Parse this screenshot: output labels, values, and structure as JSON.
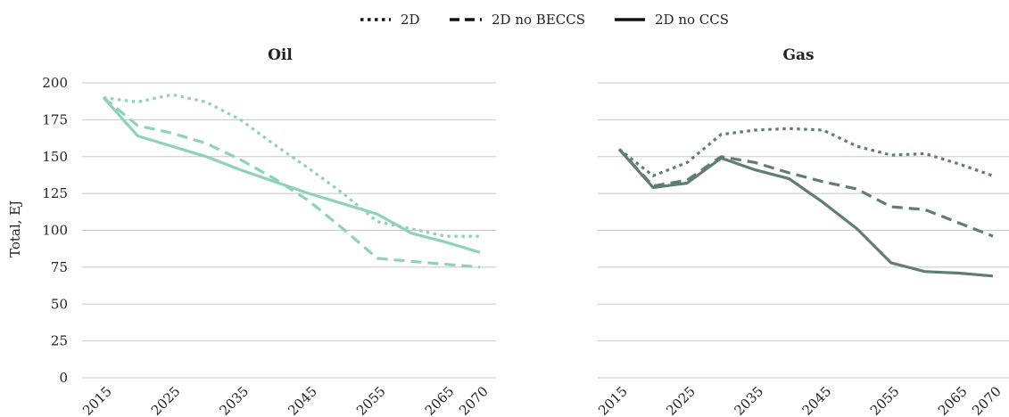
{
  "chart_data": [
    {
      "type": "line",
      "title": "Oil",
      "ylabel": "Total, EJ",
      "xlabel": "",
      "x": [
        2015,
        2020,
        2025,
        2030,
        2035,
        2040,
        2045,
        2050,
        2055,
        2060,
        2065,
        2070
      ],
      "x_tick_labels": [
        "2015",
        "2025",
        "2035",
        "2045",
        "2055",
        "2065",
        "2070"
      ],
      "y_ticks": [
        0,
        25,
        50,
        75,
        100,
        125,
        150,
        175,
        200
      ],
      "ylim": [
        0,
        200
      ],
      "grid": true,
      "color": "#8fd1bd",
      "series": [
        {
          "name": "2D",
          "style": "dotted",
          "values": [
            190,
            187,
            192,
            187,
            175,
            158,
            142,
            125,
            106,
            101,
            96,
            96
          ]
        },
        {
          "name": "2D no BECCS",
          "style": "dashed",
          "values": [
            190,
            171,
            166,
            159,
            148,
            135,
            120,
            101,
            81,
            79,
            77,
            75
          ]
        },
        {
          "name": "2D no CCS",
          "style": "solid",
          "values": [
            190,
            164,
            157,
            150,
            141,
            133,
            125,
            118,
            111,
            98,
            92,
            85
          ]
        }
      ]
    },
    {
      "type": "line",
      "title": "Gas",
      "xlabel": "",
      "x": [
        2015,
        2020,
        2025,
        2030,
        2035,
        2040,
        2045,
        2050,
        2055,
        2060,
        2065,
        2070
      ],
      "x_tick_labels": [
        "2015",
        "2025",
        "2035",
        "2045",
        "2055",
        "2065",
        "2070"
      ],
      "ylim": [
        0,
        200
      ],
      "grid": true,
      "color": "#607c76",
      "series": [
        {
          "name": "2D",
          "style": "dotted",
          "values": [
            155,
            137,
            146,
            165,
            168,
            169,
            168,
            157,
            151,
            152,
            145,
            137
          ]
        },
        {
          "name": "2D no BECCS",
          "style": "dashed",
          "values": [
            155,
            130,
            134,
            150,
            146,
            139,
            133,
            128,
            116,
            114,
            105,
            96
          ]
        },
        {
          "name": "2D no CCS",
          "style": "solid",
          "values": [
            155,
            129,
            132,
            149,
            141,
            135,
            119,
            101,
            78,
            72,
            71,
            69
          ]
        }
      ]
    }
  ],
  "legend": [
    {
      "label": "2D",
      "style": "dotted"
    },
    {
      "label": "2D no BECCS",
      "style": "dashed"
    },
    {
      "label": "2D no CCS",
      "style": "solid"
    }
  ],
  "legend_color": "#111111",
  "grid_color": "#c8c8c8"
}
